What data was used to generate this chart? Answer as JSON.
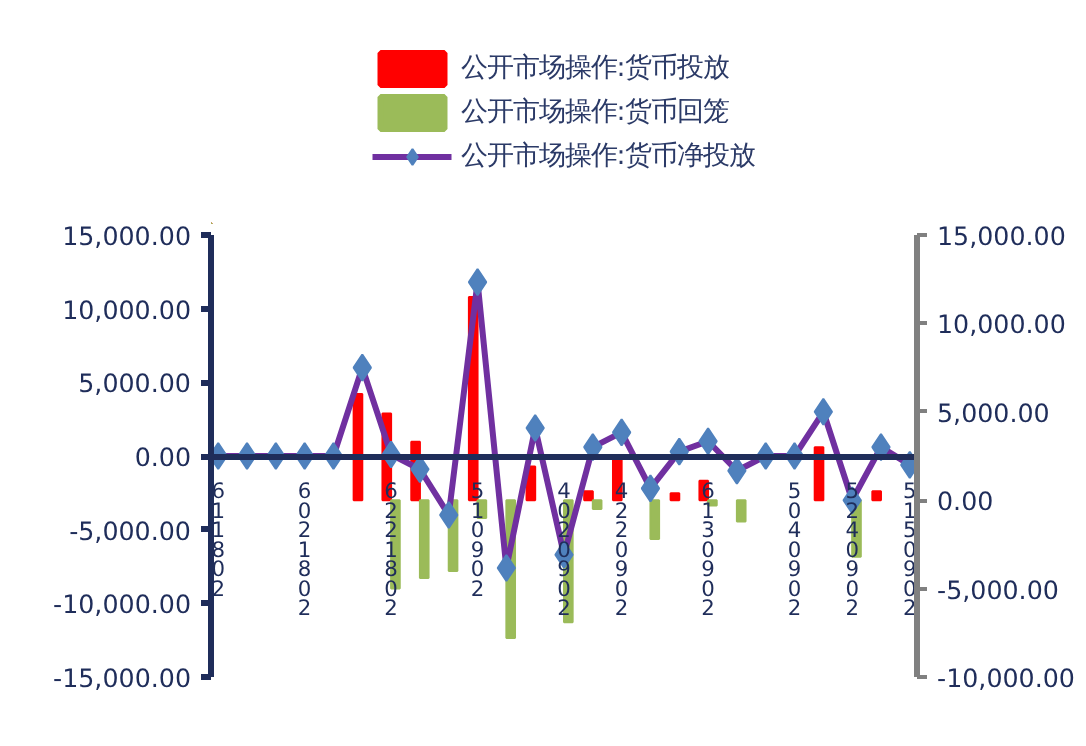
{
  "chart_data": {
    "type": "bar",
    "categories": [
      "611802",
      null,
      null,
      "6021802",
      null,
      null,
      "6221802",
      null,
      null,
      "510902",
      null,
      null,
      "4020902",
      null,
      "4220902",
      null,
      null,
      "6130902",
      null,
      null,
      "5040902",
      null,
      "5240902",
      null,
      "5150902"
    ],
    "series": [
      {
        "name": "公开市场操作:货币投放",
        "axis": "y2",
        "color": "#ff0000",
        "values": [
          null,
          null,
          null,
          null,
          null,
          6000,
          4900,
          3300,
          null,
          11500,
          null,
          1900,
          null,
          500,
          2300,
          null,
          400,
          1100,
          null,
          null,
          null,
          3000,
          null,
          500,
          null
        ]
      },
      {
        "name": "公开市场操作:货币回笼",
        "axis": "y2",
        "color": "#9bbb59",
        "values": [
          null,
          null,
          null,
          null,
          null,
          null,
          -5000,
          -4400,
          -4000,
          -1000,
          -7800,
          null,
          -6900,
          -500,
          null,
          -2200,
          null,
          -300,
          -1200,
          null,
          null,
          null,
          -3200,
          null,
          null
        ]
      },
      {
        "name": "公开市场操作:货币净投放",
        "type": "line",
        "axis": "y",
        "color": "#7030a0",
        "marker": "diamond",
        "values": [
          0,
          0,
          0,
          0,
          0,
          6000,
          100,
          -900,
          -4000,
          11800,
          -7600,
          1900,
          -6700,
          600,
          1600,
          -2200,
          300,
          1000,
          -1000,
          0,
          0,
          3000,
          -3000,
          600,
          -600
        ]
      }
    ],
    "ylim": [
      -15000,
      15000
    ],
    "yticks": [
      {
        "value": -15000,
        "label": "-15,000.00"
      },
      {
        "value": -10000,
        "label": "-10,000.00"
      },
      {
        "value": -5000,
        "label": "-5,000.00"
      },
      {
        "value": 0,
        "label": "0.00"
      },
      {
        "value": 5000,
        "label": "5,000.00"
      },
      {
        "value": 10000,
        "label": "10,000.00"
      },
      {
        "value": 15000,
        "label": "15,000.00"
      }
    ],
    "y2lim": [
      -10000,
      15000
    ],
    "y2ticks": [
      {
        "value": -10000,
        "label": "-10,000.00"
      },
      {
        "value": -5000,
        "label": "-5,000.00"
      },
      {
        "value": 0,
        "label": "0.00"
      },
      {
        "value": 5000,
        "label": "5,000.00"
      },
      {
        "value": 10000,
        "label": "10,000.00"
      },
      {
        "value": 15000,
        "label": "15,000.00"
      }
    ],
    "legend": "top"
  }
}
